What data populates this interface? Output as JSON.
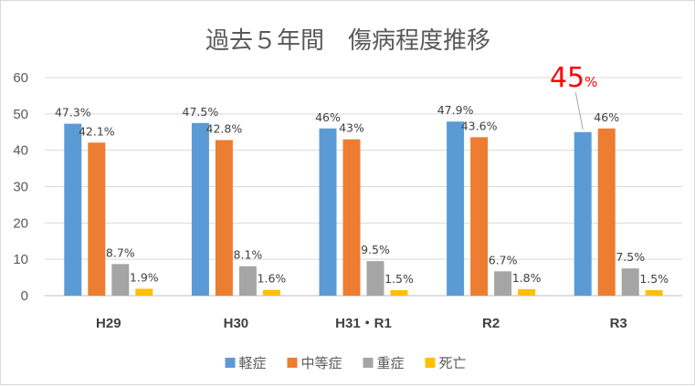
{
  "chart_data": {
    "type": "bar",
    "title": "過去５年間　傷病程度推移",
    "categories": [
      "H29",
      "H30",
      "H31・R1",
      "R2",
      "R3"
    ],
    "ylim": [
      0,
      60
    ],
    "yticks": [
      "0",
      "10",
      "20",
      "30",
      "40",
      "50",
      "60"
    ],
    "grid": true,
    "legend_position": "bottom",
    "series": [
      {
        "name": "軽症",
        "color": "#5b9bd5",
        "values": [
          47.3,
          47.5,
          46,
          47.9,
          45
        ],
        "labels": [
          "47.3%",
          "47.5%",
          "46%",
          "47.9%",
          "45%"
        ]
      },
      {
        "name": "中等症",
        "color": "#ed7d31",
        "values": [
          42.1,
          42.8,
          43,
          43.6,
          46
        ],
        "labels": [
          "42.1%",
          "42.8%",
          "43%",
          "43.6%",
          "46%"
        ]
      },
      {
        "name": "重症",
        "color": "#a5a5a5",
        "values": [
          8.7,
          8.1,
          9.5,
          6.7,
          7.5
        ],
        "labels": [
          "8.7%",
          "8.1%",
          "9.5%",
          "6.7%",
          "7.5%"
        ]
      },
      {
        "name": "死亡",
        "color": "#ffc000",
        "values": [
          1.9,
          1.6,
          1.5,
          1.8,
          1.5
        ],
        "labels": [
          "1.9%",
          "1.6%",
          "1.5%",
          "1.8%",
          "1.5%"
        ]
      }
    ],
    "highlight": {
      "series": 0,
      "category": 4,
      "color": "#ff0000"
    }
  }
}
